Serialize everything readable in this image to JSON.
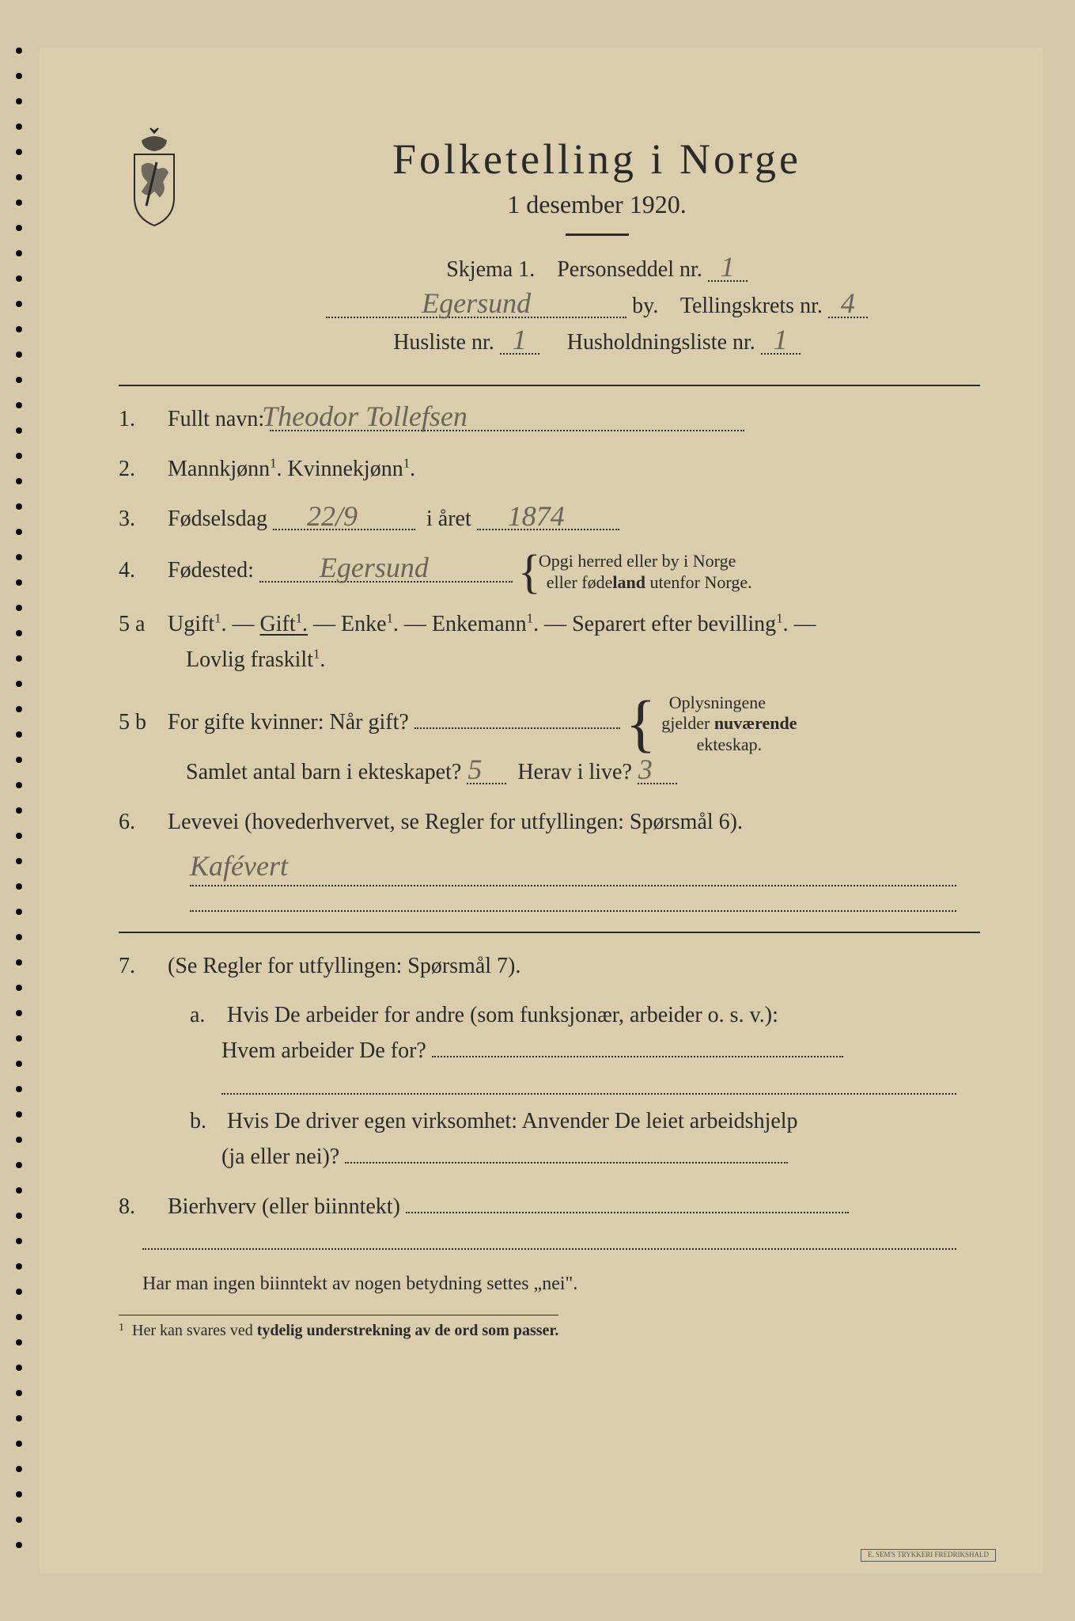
{
  "header": {
    "title": "Folketelling i Norge",
    "subtitle": "1 desember 1920."
  },
  "form_meta": {
    "skjema_label": "Skjema 1.",
    "personseddel_label": "Personseddel nr.",
    "personseddel_nr": "1",
    "by": "Egersund",
    "by_label": "by.",
    "tellingskrets_label": "Tellingskrets nr.",
    "tellingskrets_nr": "4",
    "husliste_label": "Husliste nr.",
    "husliste_nr": "1",
    "husholdning_label": "Husholdningsliste nr.",
    "husholdning_nr": "1"
  },
  "q1": {
    "num": "1.",
    "label": "Fullt navn:",
    "value": "Theodor Tollefsen"
  },
  "q2": {
    "num": "2.",
    "label_m": "Mannkjønn",
    "label_k": "Kvinnekjønn"
  },
  "q3": {
    "num": "3.",
    "label": "Fødselsdag",
    "day": "22/9",
    "year_label": "i året",
    "year": "1874"
  },
  "q4": {
    "num": "4.",
    "label": "Fødested:",
    "value": "Egersund",
    "note_l1": "Opgi herred eller by i Norge",
    "note_l2": "eller fødeland utenfor Norge."
  },
  "q5a": {
    "num": "5 a",
    "ugift": "Ugift",
    "gift": "Gift",
    "enke": "Enke",
    "enkemann": "Enkemann",
    "separert": "Separert efter bevilling",
    "fraskilt": "Lovlig fraskilt"
  },
  "q5b": {
    "num": "5 b",
    "q1": "For gifte kvinner: Når gift?",
    "q2": "Samlet antal barn i ekteskapet?",
    "barn": "5",
    "q3": "Herav i live?",
    "ilive": "3",
    "note_l1": "Oplysningene",
    "note_l2": "gjelder nuværende",
    "note_l3": "ekteskap."
  },
  "q6": {
    "num": "6.",
    "label": "Levevei (hovederhvervet, se Regler for utfyllingen: Spørsmål 6).",
    "value": "Kafévert"
  },
  "q7": {
    "num": "7.",
    "label": "(Se Regler for utfyllingen: Spørsmål 7).",
    "a_letter": "a.",
    "a_l1": "Hvis De arbeider for andre (som funksjonær, arbeider o. s. v.):",
    "a_l2": "Hvem arbeider De for?",
    "b_letter": "b.",
    "b_l1": "Hvis De driver egen virksomhet: Anvender De leiet arbeidshjelp",
    "b_l2": "(ja eller nei)?"
  },
  "q8": {
    "num": "8.",
    "label": "Bierhverv (eller biinntekt)"
  },
  "footer": {
    "note": "Har man ingen biinntekt av nogen betydning settes „nei\".",
    "footnote_num": "1",
    "footnote": "Her kan svares ved tydelig understrekning av de ord som passer.",
    "printer": "E. SEM'S TRYKKERI FREDRIKSHALD"
  },
  "colors": {
    "paper": "#d9cdab",
    "ink": "#2a2a2a",
    "pencil": "#6b6458"
  }
}
